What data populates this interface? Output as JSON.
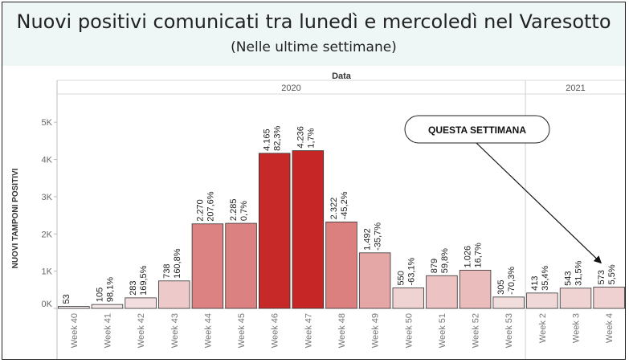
{
  "title": "Nuovi positivi comunicati tra lunedì e mercoledì nel Varesotto",
  "subtitle": "(Nelle ultime settimane)",
  "chart_data": {
    "type": "bar",
    "top_axis_label": "Data",
    "year_groups": [
      {
        "label": "2020",
        "count": 14
      },
      {
        "label": "2021",
        "count": 3
      }
    ],
    "ylabel": "NUOVI TAMPONI POSITIVI",
    "ylim": [
      0,
      5500
    ],
    "yticks": [
      0,
      1000,
      2000,
      3000,
      4000,
      5000
    ],
    "ytick_labels": [
      "0K",
      "1K",
      "2K",
      "3K",
      "4K",
      "5K"
    ],
    "categories": [
      "Week 40",
      "Week 41",
      "Week 42",
      "Week 43",
      "Week 44",
      "Week 45",
      "Week 46",
      "Week 47",
      "Week 48",
      "Week 49",
      "Week 50",
      "Week 51",
      "Week 52",
      "Week 53",
      "Week 2",
      "Week 3",
      "Week 4"
    ],
    "values": [
      53,
      105,
      283,
      738,
      2270,
      2285,
      4165,
      4236,
      2322,
      1492,
      550,
      879,
      1026,
      305,
      413,
      543,
      573
    ],
    "value_labels": [
      "53",
      "105",
      "283",
      "738",
      "2.270",
      "2.285",
      "4.165",
      "4.236",
      "2.322",
      "1.492",
      "550",
      "879",
      "1.026",
      "305",
      "413",
      "543",
      "573"
    ],
    "pct_labels": [
      "",
      "98,1%",
      "169,5%",
      "160,8%",
      "207,6%",
      "0,7%",
      "82,3%",
      "1,7%",
      "-45,2%",
      "-35,7%",
      "-63,1%",
      "59,8%",
      "16,7%",
      "-70,3%",
      "35,4%",
      "31,5%",
      "5,5%"
    ],
    "color_scale": [
      "#f5e9e9",
      "#c62626"
    ],
    "grid": false,
    "annotation": {
      "text": "QUESTA SETTIMANA",
      "target": "Week 4"
    }
  }
}
